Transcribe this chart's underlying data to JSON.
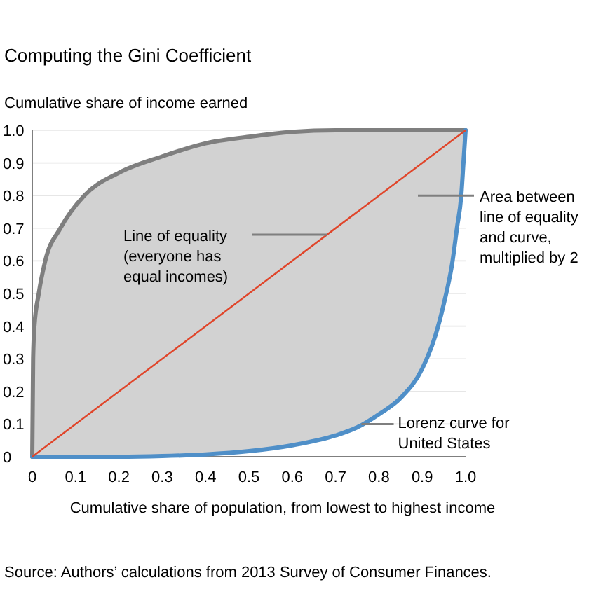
{
  "chart_data": {
    "type": "line",
    "title": "Computing the Gini Coefficient",
    "ylabel": "Cumulative share of income earned",
    "xlabel": "Cumulative share of population, from lowest to highest income",
    "xlim": [
      0,
      1
    ],
    "ylim": [
      0,
      1
    ],
    "xticks": [
      0,
      0.1,
      0.2,
      0.3,
      0.4,
      0.5,
      0.6,
      0.7,
      0.8,
      0.9,
      "1.0"
    ],
    "yticks": [
      0,
      0.1,
      0.2,
      0.3,
      0.4,
      0.5,
      0.6,
      0.7,
      0.8,
      0.9,
      "1.0"
    ],
    "grid": "y",
    "marker": "none",
    "x": [
      0,
      0.002,
      0.005,
      0.015,
      0.03,
      0.065,
      0.12,
      0.2,
      0.3,
      0.4,
      0.5,
      0.6,
      0.7,
      0.75,
      0.8,
      0.85,
      0.9,
      0.93,
      0.95,
      0.97,
      0.98,
      0.99,
      0.995,
      1
    ],
    "series": [
      {
        "color": "#7f7f7f",
        "values": [
          0,
          0.3,
          0.4,
          0.5,
          0.6,
          0.7,
          0.8,
          0.87,
          0.92,
          0.96,
          0.98,
          0.995,
          1,
          1,
          1,
          1,
          1,
          1,
          1,
          1,
          1,
          1,
          1,
          1
        ]
      },
      {
        "color": "#4f8fc8",
        "values": [
          0,
          0,
          0,
          0,
          0,
          0,
          0,
          0,
          0.002,
          0.007,
          0.017,
          0.035,
          0.065,
          0.09,
          0.13,
          0.18,
          0.27,
          0.37,
          0.47,
          0.6,
          0.7,
          0.8,
          0.9,
          1
        ]
      },
      {
        "type": "line",
        "color": "#e0452a",
        "x": [
          0,
          1
        ],
        "values": [
          0,
          1
        ]
      }
    ],
    "annotations": [
      "Line of equality\n(everyone has\nequal incomes)",
      "Area between\nline of equality\nand curve,\nmultiplied by 2",
      {
        "text": "Lorenz curve for\nUnited States",
        "x": 0.75,
        "y": 0.1
      },
      "Source: Authors’ calculations from 2013 Survey of Consumer Finances."
    ]
  }
}
